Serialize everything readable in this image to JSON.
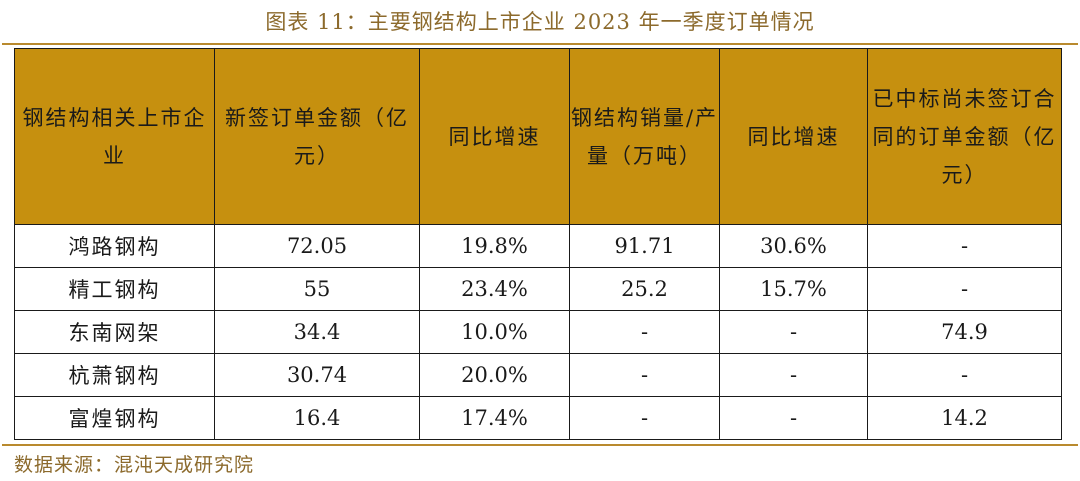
{
  "title": "图表 11：主要钢结构上市企业 2023 年一季度订单情况",
  "table": {
    "headers": [
      "钢结构相关上市企业",
      "新签订单金额（亿元）",
      "同比增速",
      "钢结构销量/产量（万吨）",
      "同比增速",
      "已中标尚未签订合同的订单金额（亿元）"
    ],
    "rows": [
      [
        "鸿路钢构",
        "72.05",
        "19.8%",
        "91.71",
        "30.6%",
        "-"
      ],
      [
        "精工钢构",
        "55",
        "23.4%",
        "25.2",
        "15.7%",
        "-"
      ],
      [
        "东南网架",
        "34.4",
        "10.0%",
        "-",
        "-",
        "74.9"
      ],
      [
        "杭萧钢构",
        "30.74",
        "20.0%",
        "-",
        "-",
        "-"
      ],
      [
        "富煌钢构",
        "16.4",
        "17.4%",
        "-",
        "-",
        "14.2"
      ]
    ]
  },
  "source": "数据来源：混沌天成研究院",
  "colors": {
    "header_bg": "#c6900f",
    "rule": "#b98a2e",
    "title_text": "#8c6a2c"
  }
}
